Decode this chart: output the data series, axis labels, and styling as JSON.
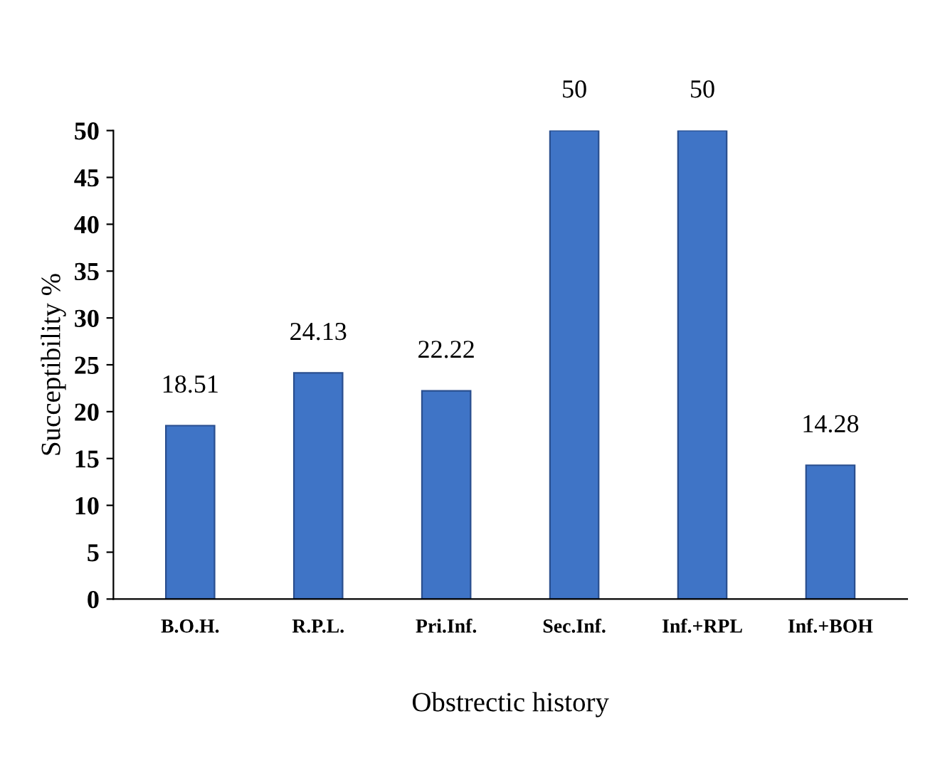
{
  "chart_data": {
    "type": "bar",
    "xlabel": "Obstrectic history",
    "ylabel": "Succeptibility %",
    "categories": [
      "B.O.H.",
      "R.P.L.",
      "Pri.Inf.",
      "Sec.Inf.",
      "Inf.+RPL",
      "Inf.+BOH"
    ],
    "values": [
      18.51,
      24.13,
      22.22,
      50,
      50,
      14.28
    ],
    "color": "#3f74c6",
    "ylim": [
      0,
      50
    ],
    "yticks": [
      0,
      5,
      10,
      15,
      20,
      25,
      30,
      35,
      40,
      45,
      50
    ],
    "grid": false,
    "data_labels": true
  }
}
